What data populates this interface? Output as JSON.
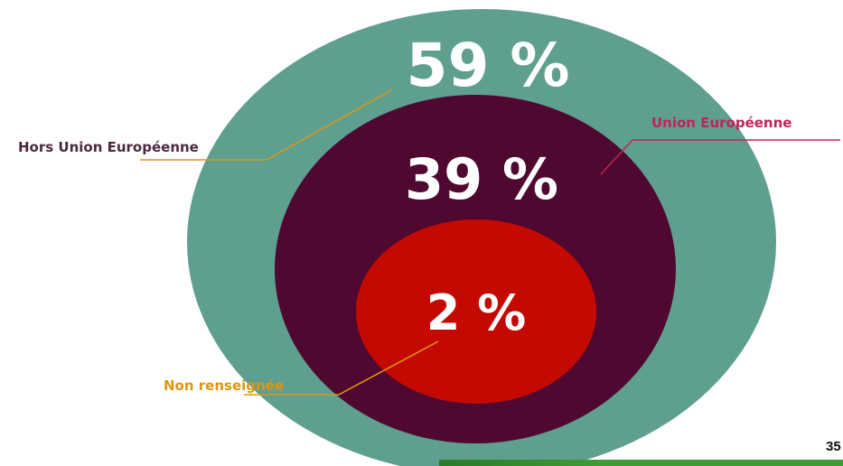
{
  "chart_data": {
    "type": "nested-ellipse",
    "series": [
      {
        "label": "Hors Union Européenne",
        "value": 59,
        "display": "59 %",
        "color": "#5f9f90",
        "label_color": "#4a2940"
      },
      {
        "label": "Union Européenne",
        "value": 39,
        "display": "39 %",
        "color": "#4f0830",
        "label_color": "#c0245a"
      },
      {
        "label": "Non renseignée",
        "value": 2,
        "display": "2 %",
        "color": "#c40a00",
        "label_color": "#e0960e"
      }
    ]
  },
  "footer": {
    "page_number": "35",
    "bar_color": "#3f9c35",
    "bar_dark_color": "#2a7a2a"
  }
}
